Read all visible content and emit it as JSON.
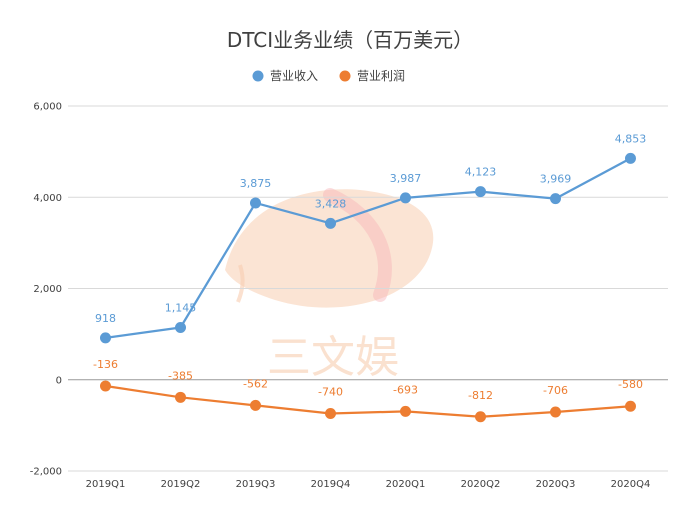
{
  "chart_data": {
    "type": "line",
    "title": "DTCI业务业绩（百万美元）",
    "categories": [
      "2019Q1",
      "2019Q2",
      "2019Q3",
      "2019Q4",
      "2020Q1",
      "2020Q2",
      "2020Q3",
      "2020Q4"
    ],
    "series": [
      {
        "name": "营业收入",
        "color": "#5b9bd5",
        "values": [
          918,
          1145,
          3875,
          3428,
          3987,
          4123,
          3969,
          4853
        ],
        "labels": [
          "918",
          "1,145",
          "3,875",
          "3,428",
          "3,987",
          "4,123",
          "3,969",
          "4,853"
        ]
      },
      {
        "name": "营业利润",
        "color": "#ed7d31",
        "values": [
          -136,
          -385,
          -562,
          -740,
          -693,
          -812,
          -706,
          -580
        ],
        "labels": [
          "-136",
          "-385",
          "-562",
          "-740",
          "-693",
          "-812",
          "-706",
          "-580"
        ]
      }
    ],
    "y_ticks": [
      -2000,
      0,
      2000,
      4000,
      6000
    ],
    "y_tick_labels": [
      "-2,000",
      "0",
      "2,000",
      "4,000",
      "6,000"
    ],
    "ylim": [
      -2000,
      6000
    ],
    "grid": true,
    "legend_position": "top-center"
  },
  "watermark": {
    "text": "三文娱",
    "colors": [
      "#f6c9a8",
      "#f7b4b8"
    ]
  }
}
